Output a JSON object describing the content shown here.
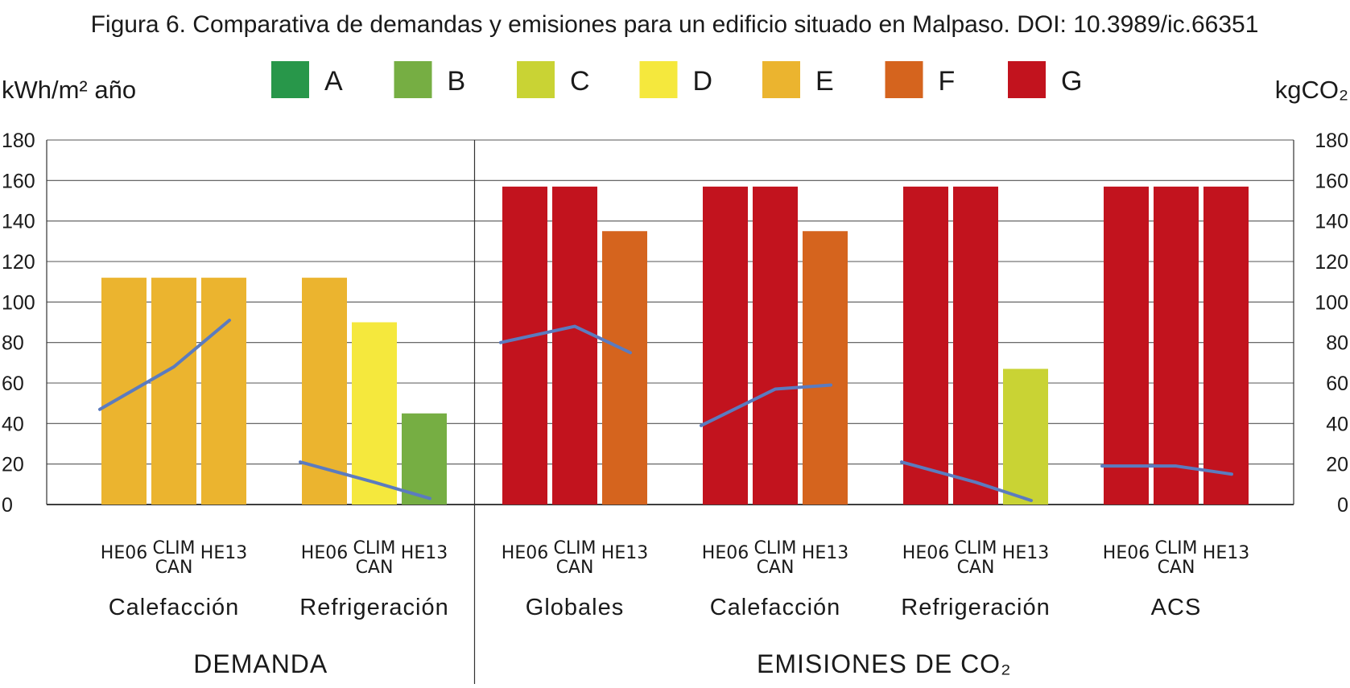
{
  "chart_data": {
    "type": "bar",
    "title": "Figura 6. Comparativa de demandas y emisiones para un edificio situado en Malpaso. DOI: 10.3989/ic.66351",
    "ylabel_left": "kWh/m² año",
    "ylabel_right": "kgCO₂",
    "ylim": [
      0,
      180
    ],
    "yticks": [
      "0",
      "20",
      "40",
      "60",
      "80",
      "100",
      "120",
      "140",
      "160",
      "180"
    ],
    "grid": true,
    "legend_position": "top",
    "legend": [
      {
        "label": "A",
        "color": "#28974a"
      },
      {
        "label": "B",
        "color": "#76ae43"
      },
      {
        "label": "C",
        "color": "#c9d334"
      },
      {
        "label": "D",
        "color": "#f5e83d"
      },
      {
        "label": "E",
        "color": "#ebb42f"
      },
      {
        "label": "F",
        "color": "#d5641e"
      },
      {
        "label": "G",
        "color": "#c2131e"
      }
    ],
    "line_color": "#5b7bbf",
    "bar_labels": [
      "HE06",
      "CLIM CAN",
      "HE13"
    ],
    "sections": [
      {
        "label": "DEMANDA",
        "groups": [
          {
            "label": "Calefacción",
            "bars": [
              {
                "value": 112,
                "class": "E"
              },
              {
                "value": 112,
                "class": "E"
              },
              {
                "value": 112,
                "class": "E"
              }
            ],
            "line": [
              47,
              68,
              91
            ]
          },
          {
            "label": "Refrigeración",
            "bars": [
              {
                "value": 112,
                "class": "E"
              },
              {
                "value": 90,
                "class": "D"
              },
              {
                "value": 45,
                "class": "B"
              }
            ],
            "line": [
              21,
              11,
              3
            ]
          }
        ]
      },
      {
        "label": "EMISIONES DE CO₂",
        "groups": [
          {
            "label": "Globales",
            "bars": [
              {
                "value": 157,
                "class": "G"
              },
              {
                "value": 157,
                "class": "G"
              },
              {
                "value": 135,
                "class": "F"
              }
            ],
            "line": [
              80,
              88,
              75
            ]
          },
          {
            "label": "Calefacción",
            "bars": [
              {
                "value": 157,
                "class": "G"
              },
              {
                "value": 157,
                "class": "G"
              },
              {
                "value": 135,
                "class": "F"
              }
            ],
            "line": [
              39,
              57,
              59
            ]
          },
          {
            "label": "Refrigeración",
            "bars": [
              {
                "value": 157,
                "class": "G"
              },
              {
                "value": 157,
                "class": "G"
              },
              {
                "value": 67,
                "class": "C"
              }
            ],
            "line": [
              21,
              11,
              2
            ]
          },
          {
            "label": "ACS",
            "bars": [
              {
                "value": 157,
                "class": "G"
              },
              {
                "value": 157,
                "class": "G"
              },
              {
                "value": 157,
                "class": "G"
              }
            ],
            "line": [
              19,
              19,
              15
            ]
          }
        ]
      }
    ]
  }
}
